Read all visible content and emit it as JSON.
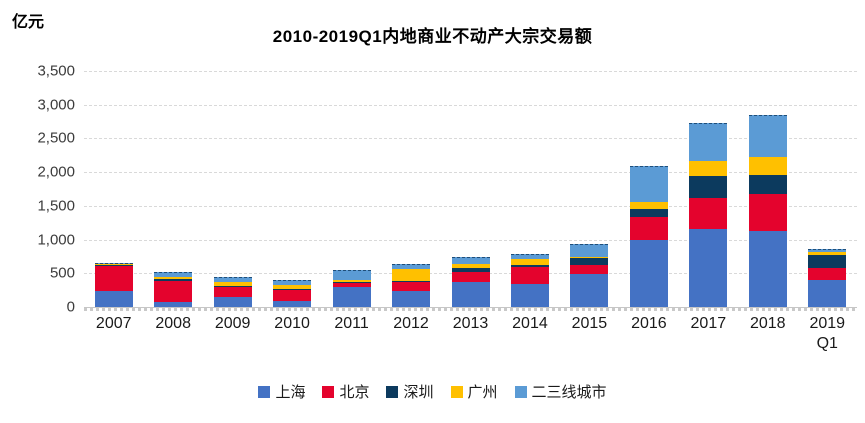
{
  "unit_label": "亿元",
  "title": "2010-2019Q1内地商业不动产大宗交易额",
  "chart_data": {
    "type": "bar",
    "stacked": true,
    "title": "2010-2019Q1内地商业不动产大宗交易额",
    "ylabel": "亿元",
    "xlabel": "",
    "ylim": [
      0,
      3500
    ],
    "ytick_interval": 500,
    "yticks": [
      0,
      500,
      1000,
      1500,
      2000,
      2500,
      3000,
      3500
    ],
    "ytick_labels": [
      "0",
      "500",
      "1,000",
      "1,500",
      "2,000",
      "2,500",
      "3,000",
      "3,500"
    ],
    "grid": true,
    "legend_position": "bottom",
    "categories": [
      "2007",
      "2008",
      "2009",
      "2010",
      "2011",
      "2012",
      "2013",
      "2014",
      "2015",
      "2016",
      "2017",
      "2018",
      "2019\nQ1"
    ],
    "series": [
      {
        "name": "上海",
        "color": "#4472C4",
        "values": [
          230,
          80,
          145,
          95,
          290,
          235,
          365,
          340,
          495,
          1000,
          1150,
          1120,
          400
        ]
      },
      {
        "name": "北京",
        "color": "#E4032D",
        "values": [
          375,
          315,
          145,
          165,
          65,
          130,
          155,
          245,
          140,
          340,
          460,
          555,
          185
        ]
      },
      {
        "name": "深圳",
        "color": "#0C3A5E",
        "values": [
          5,
          25,
          10,
          5,
          5,
          5,
          60,
          25,
          100,
          115,
          320,
          285,
          190
        ]
      },
      {
        "name": "广州",
        "color": "#FFC000",
        "values": [
          15,
          30,
          55,
          60,
          30,
          185,
          55,
          95,
          5,
          105,
          220,
          270,
          40
        ]
      },
      {
        "name": "二三线城市",
        "color": "#5B9BD5",
        "values": [
          20,
          75,
          70,
          75,
          150,
          75,
          105,
          75,
          200,
          540,
          570,
          620,
          40
        ]
      }
    ],
    "colors": {
      "grid": "#D9D9D9",
      "axis": "#C6C6C6",
      "tick_text": "#3B3B3B",
      "label_text": "#1A1A1A"
    }
  }
}
